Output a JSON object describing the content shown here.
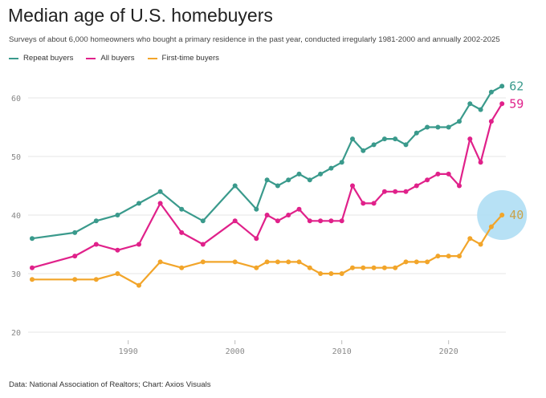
{
  "chart_data": {
    "type": "line",
    "title": "Median age of U.S. homebuyers",
    "subtitle": "Surveys of about 6,000 homeowners who bought a primary residence in the past year, conducted irregularly 1981-2000 and annually 2002-2025",
    "source": "Data: National Association of Realtors; Chart: Axios Visuals",
    "xlabel": "",
    "ylabel": "",
    "ylim": [
      20,
      63
    ],
    "xlim": [
      1980.6,
      2026
    ],
    "yticks": [
      20,
      30,
      40,
      50,
      60
    ],
    "xticks": [
      1990,
      2000,
      2010,
      2020
    ],
    "grid": true,
    "legend_position": "top-left",
    "x": [
      1981,
      1985,
      1987,
      1989,
      1991,
      1993,
      1995,
      1997,
      2000,
      2002,
      2003,
      2004,
      2005,
      2006,
      2007,
      2008,
      2009,
      2010,
      2011,
      2012,
      2013,
      2014,
      2015,
      2016,
      2017,
      2018,
      2019,
      2020,
      2021,
      2022,
      2023,
      2024,
      2025
    ],
    "series": [
      {
        "name": "Repeat buyers",
        "color": "#3a9a8c",
        "end_label": "62",
        "values": [
          36,
          37,
          39,
          40,
          42,
          44,
          41,
          39,
          45,
          41,
          46,
          45,
          46,
          47,
          46,
          47,
          48,
          49,
          53,
          51,
          52,
          53,
          53,
          52,
          54,
          55,
          55,
          55,
          56,
          59,
          58,
          61,
          62
        ]
      },
      {
        "name": "All buyers",
        "color": "#e0218a",
        "end_label": "59",
        "values": [
          31,
          33,
          35,
          34,
          35,
          42,
          37,
          35,
          39,
          36,
          40,
          39,
          40,
          41,
          39,
          39,
          39,
          39,
          45,
          42,
          42,
          44,
          44,
          44,
          45,
          46,
          47,
          47,
          45,
          53,
          49,
          56,
          59
        ]
      },
      {
        "name": "First-time buyers",
        "color": "#f2a52a",
        "end_label": "40",
        "highlight_color": "#aadcf3",
        "values": [
          29,
          29,
          29,
          30,
          28,
          32,
          31,
          32,
          32,
          31,
          32,
          32,
          32,
          32,
          31,
          30,
          30,
          30,
          31,
          31,
          31,
          31,
          31,
          32,
          32,
          32,
          33,
          33,
          33,
          36,
          35,
          38,
          40
        ]
      }
    ]
  }
}
